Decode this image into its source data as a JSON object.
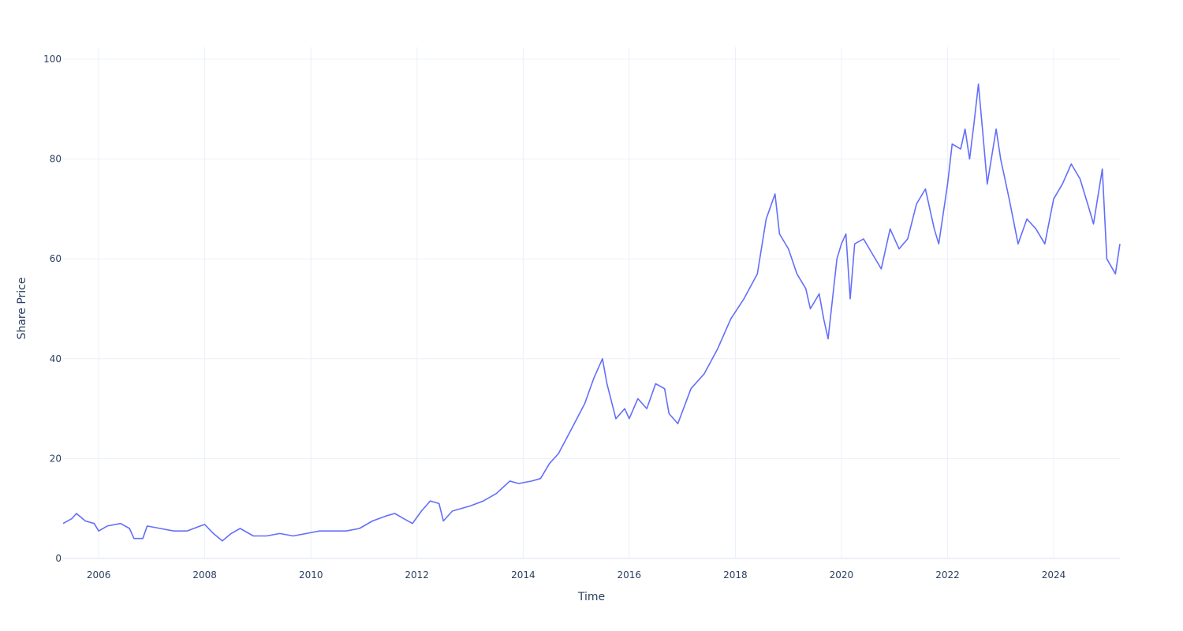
{
  "chart_data": {
    "type": "line",
    "title": "",
    "xlabel": "Time",
    "ylabel": "Share Price",
    "xlim": [
      "2005-05-01",
      "2025-04-01"
    ],
    "ylim": [
      0,
      100
    ],
    "x_ticks": [
      "2006",
      "2008",
      "2010",
      "2012",
      "2014",
      "2016",
      "2018",
      "2020",
      "2022",
      "2024"
    ],
    "y_ticks": [
      0,
      20,
      40,
      60,
      80,
      100
    ],
    "grid": true,
    "legend": "none",
    "line_color": "#636efa",
    "series": [
      {
        "x": [
          "2005-05-01",
          "2005-07-01",
          "2005-08-01",
          "2005-10-01",
          "2005-12-01",
          "2006-01-01",
          "2006-03-01",
          "2006-06-01",
          "2006-08-01",
          "2006-09-01",
          "2006-11-01",
          "2006-12-01",
          "2007-03-01",
          "2007-06-01",
          "2007-09-01",
          "2007-12-01",
          "2008-01-01",
          "2008-03-01",
          "2008-05-01",
          "2008-07-01",
          "2008-09-01",
          "2008-12-01",
          "2009-03-01",
          "2009-06-01",
          "2009-09-01",
          "2009-12-01",
          "2010-03-01",
          "2010-06-01",
          "2010-09-01",
          "2010-12-01",
          "2011-03-01",
          "2011-06-01",
          "2011-08-01",
          "2011-10-01",
          "2011-12-01",
          "2012-02-01",
          "2012-04-01",
          "2012-06-01",
          "2012-07-01",
          "2012-09-01",
          "2013-01-01",
          "2013-04-01",
          "2013-07-01",
          "2013-10-01",
          "2013-12-01",
          "2014-03-01",
          "2014-05-01",
          "2014-07-01",
          "2014-09-01",
          "2014-12-01",
          "2015-03-01",
          "2015-05-01",
          "2015-07-01",
          "2015-08-01",
          "2015-10-01",
          "2015-12-01",
          "2016-01-01",
          "2016-03-01",
          "2016-05-01",
          "2016-07-01",
          "2016-09-01",
          "2016-10-01",
          "2016-12-01",
          "2017-03-01",
          "2017-06-01",
          "2017-09-01",
          "2017-12-01",
          "2018-03-01",
          "2018-06-01",
          "2018-08-01",
          "2018-10-01",
          "2018-11-01",
          "2019-01-01",
          "2019-03-01",
          "2019-05-01",
          "2019-06-01",
          "2019-08-01",
          "2019-09-01",
          "2019-10-01",
          "2019-12-01",
          "2020-01-01",
          "2020-02-01",
          "2020-03-01",
          "2020-04-01",
          "2020-06-01",
          "2020-08-01",
          "2020-10-01",
          "2020-12-01",
          "2021-02-01",
          "2021-04-01",
          "2021-06-01",
          "2021-08-01",
          "2021-10-01",
          "2021-11-01",
          "2022-01-01",
          "2022-02-01",
          "2022-04-01",
          "2022-05-01",
          "2022-06-01",
          "2022-07-01",
          "2022-08-01",
          "2022-09-01",
          "2022-10-01",
          "2022-12-01",
          "2023-01-01",
          "2023-03-01",
          "2023-05-01",
          "2023-07-01",
          "2023-09-01",
          "2023-11-01",
          "2024-01-01",
          "2024-03-01",
          "2024-05-01",
          "2024-07-01",
          "2024-09-01",
          "2024-10-01",
          "2024-12-01",
          "2025-01-01",
          "2025-03-01",
          "2025-04-01"
        ],
        "y": [
          7.0,
          8.0,
          9.0,
          7.5,
          7.0,
          5.5,
          6.5,
          7.0,
          6.0,
          4.0,
          4.0,
          6.5,
          6.0,
          5.5,
          5.5,
          6.5,
          6.8,
          5.0,
          3.5,
          5.0,
          6.0,
          4.5,
          4.5,
          5.0,
          4.5,
          5.0,
          5.5,
          5.5,
          5.5,
          6.0,
          7.5,
          8.5,
          9.0,
          8.0,
          7.0,
          9.5,
          11.5,
          11.0,
          7.5,
          9.5,
          10.5,
          11.5,
          13.0,
          15.5,
          15.0,
          15.5,
          16.0,
          19.0,
          21.0,
          26.0,
          31.0,
          36.0,
          40.0,
          35.0,
          28.0,
          30.0,
          28.0,
          32.0,
          30.0,
          35.0,
          34.0,
          29.0,
          27.0,
          34.0,
          37.0,
          42.0,
          48.0,
          52.0,
          57.0,
          68.0,
          73.0,
          65.0,
          62.0,
          57.0,
          54.0,
          50.0,
          53.0,
          48.0,
          44.0,
          60.0,
          63.0,
          65.0,
          52.0,
          63.0,
          64.0,
          61.0,
          58.0,
          66.0,
          62.0,
          64.0,
          71.0,
          74.0,
          66.0,
          63.0,
          75.0,
          83.0,
          82.0,
          86.0,
          80.0,
          87.0,
          95.0,
          85.0,
          75.0,
          86.0,
          80.0,
          72.0,
          63.0,
          68.0,
          66.0,
          63.0,
          72.0,
          75.0,
          79.0,
          76.0,
          70.0,
          67.0,
          78.0,
          60.0,
          57.0,
          63.0
        ]
      }
    ]
  }
}
